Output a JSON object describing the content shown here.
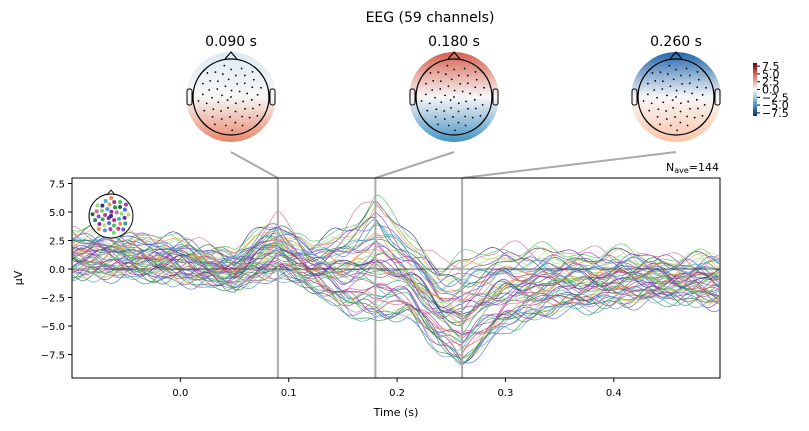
{
  "chart_data": {
    "type": "line",
    "title": "EEG (59 channels)",
    "xlabel": "Time (s)",
    "ylabel": "µV",
    "xlim": [
      -0.1,
      0.498
    ],
    "ylim": [
      -9.2,
      7.8
    ],
    "xticks": [
      0.0,
      0.1,
      0.2,
      0.3,
      0.4
    ],
    "xtick_labels": [
      "0.0",
      "0.1",
      "0.2",
      "0.3",
      "0.4"
    ],
    "yticks": [
      7.5,
      5.0,
      2.5,
      0.0,
      -2.5,
      -5.0,
      -7.5
    ],
    "ytick_labels": [
      "7.5",
      "5.0",
      "2.5",
      "0.0",
      "−2.5",
      "−5.0",
      "−7.5"
    ],
    "annotation": {
      "label_main": "N",
      "label_sub": "ave",
      "label_value": "=144"
    },
    "n_channels": 59,
    "topomap_times": [
      0.09,
      0.18,
      0.26
    ],
    "topomaps": [
      {
        "title": "0.090 s",
        "time": 0.09
      },
      {
        "title": "0.180 s",
        "time": 0.18
      },
      {
        "title": "0.260 s",
        "time": 0.26
      }
    ],
    "colorbar": {
      "range": [
        -8.5,
        8.5
      ],
      "tick_labels": [
        "7.5",
        "5.0",
        "2.5",
        "0.0",
        "−2.5",
        "−5.0",
        "−7.5"
      ],
      "ticks": [
        7.5,
        5.0,
        2.5,
        0.0,
        -2.5,
        -5.0,
        -7.5
      ],
      "colormap": "RdBu_r"
    },
    "envelope_keypoints": {
      "t": [
        -0.1,
        -0.05,
        0.0,
        0.05,
        0.09,
        0.12,
        0.15,
        0.18,
        0.21,
        0.24,
        0.26,
        0.3,
        0.35,
        0.4,
        0.45,
        0.498
      ],
      "upper": [
        3.5,
        3.2,
        2.5,
        1.5,
        4.5,
        2.0,
        3.5,
        6.5,
        3.0,
        0.5,
        1.0,
        2.0,
        1.5,
        1.5,
        1.0,
        1.0
      ],
      "lower": [
        -0.5,
        -0.5,
        -1.0,
        -1.5,
        -0.5,
        -1.5,
        -3.5,
        -4.5,
        -4.0,
        -7.0,
        -8.5,
        -5.0,
        -3.5,
        -3.0,
        -2.5,
        -3.0
      ]
    }
  }
}
